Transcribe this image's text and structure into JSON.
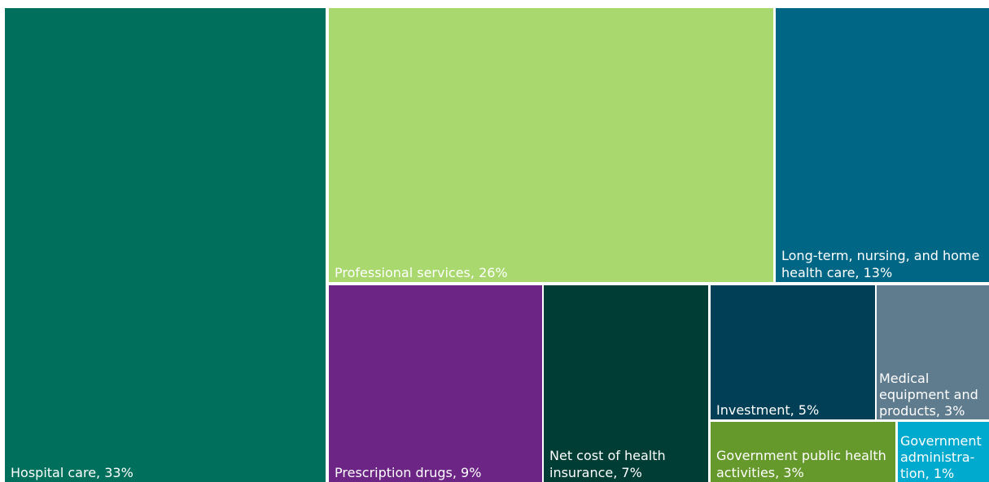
{
  "chart_data": {
    "type": "treemap",
    "title": "",
    "unit": "%",
    "items": [
      {
        "label": "Hospital care",
        "value": 33,
        "text": "Hospital care, 33%",
        "color": "#006F5B"
      },
      {
        "label": "Professional services",
        "value": 26,
        "text": "Professional services, 26%",
        "color": "#A8D86E"
      },
      {
        "label": "Long-term, nursing, and home health care",
        "value": 13,
        "text": "Long-term, nursing, and home health care, 13%",
        "color": "#006685"
      },
      {
        "label": "Prescription drugs",
        "value": 9,
        "text": "Prescription drugs, 9%",
        "color": "#6C2585"
      },
      {
        "label": "Net cost of health insurance",
        "value": 7,
        "text": "Net cost of health insurance, 7%",
        "color": "#003D35"
      },
      {
        "label": "Investment",
        "value": 5,
        "text": "Investment, 5%",
        "color": "#003F55"
      },
      {
        "label": "Medical equipment and products",
        "value": 3,
        "text": "Medical equipment and products, 3%",
        "color": "#5F7C8E"
      },
      {
        "label": "Government public health activities",
        "value": 3,
        "text": "Government public health activities, 3%",
        "color": "#66992B"
      },
      {
        "label": "Government administration",
        "value": 1,
        "text": "Government administra-tion, 1%",
        "color": "#00A9CE"
      }
    ]
  }
}
